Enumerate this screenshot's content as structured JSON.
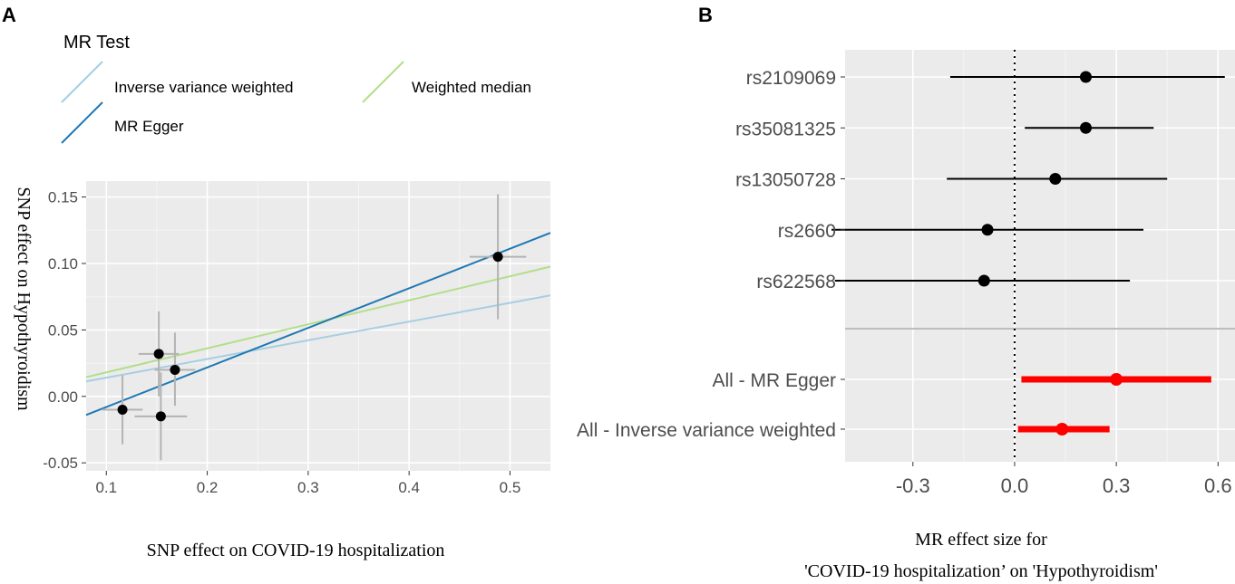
{
  "chart_data": [
    {
      "panel_label": "A",
      "type": "scatter",
      "title": "",
      "xlabel": "SNP effect on COVID-19 hospitalization",
      "ylabel": "SNP effect on Hypothyroidism",
      "xlim": [
        0.08,
        0.54
      ],
      "ylim": [
        -0.056,
        0.162
      ],
      "xticks": [
        0.1,
        0.2,
        0.3,
        0.4,
        0.5
      ],
      "xtick_labels": [
        "0.1",
        "0.2",
        "0.3",
        "0.4",
        "0.5"
      ],
      "yticks": [
        -0.05,
        0.0,
        0.05,
        0.1,
        0.15
      ],
      "ytick_labels": [
        "-0.05",
        "0.00",
        "0.05",
        "0.10",
        "0.15"
      ],
      "grid": true,
      "legend": {
        "title": "MR Test",
        "placement": "top",
        "entries": [
          {
            "key": "ivw",
            "label": "Inverse variance weighted",
            "color": "#a6cee3"
          },
          {
            "key": "wm",
            "label": "Weighted median",
            "color": "#b2df8a"
          },
          {
            "key": "egger",
            "label": "MR Egger",
            "color": "#1f78b4"
          }
        ]
      },
      "points": [
        {
          "x": 0.116,
          "y": -0.01,
          "x_lo": 0.096,
          "x_hi": 0.136,
          "y_lo": -0.036,
          "y_hi": 0.016
        },
        {
          "x": 0.152,
          "y": 0.032,
          "x_lo": 0.132,
          "x_hi": 0.172,
          "y_lo": 0.0,
          "y_hi": 0.064
        },
        {
          "x": 0.168,
          "y": 0.02,
          "x_lo": 0.148,
          "x_hi": 0.188,
          "y_lo": -0.007,
          "y_hi": 0.048
        },
        {
          "x": 0.154,
          "y": -0.015,
          "x_lo": 0.128,
          "x_hi": 0.18,
          "y_lo": -0.048,
          "y_hi": 0.018
        },
        {
          "x": 0.488,
          "y": 0.105,
          "x_lo": 0.46,
          "x_hi": 0.516,
          "y_lo": 0.058,
          "y_hi": 0.152
        }
      ],
      "lines": [
        {
          "key": "ivw",
          "intercept": 0.0,
          "slope": 0.1407,
          "color": "#a6cee3"
        },
        {
          "key": "wm",
          "intercept": 0.0,
          "slope": 0.1808,
          "color": "#b2df8a"
        },
        {
          "key": "egger",
          "intercept": -0.0378,
          "slope": 0.2979,
          "color": "#1f78b4"
        }
      ]
    },
    {
      "panel_label": "B",
      "type": "forest",
      "xlabel_line1": "MR effect size for",
      "xlabel_line2": "'COVID-19 hospitalization’ on 'Hypothyroidism'",
      "xlim": [
        -0.5,
        0.65
      ],
      "xticks": [
        -0.3,
        0.0,
        0.3,
        0.6
      ],
      "xtick_labels": [
        "-0.3",
        "0.0",
        "0.3",
        "0.6"
      ],
      "null_line": 0.0,
      "grid": true,
      "snps": [
        {
          "label": "rs2109069",
          "est": 0.21,
          "lo": -0.19,
          "hi": 0.62
        },
        {
          "label": "rs35081325",
          "est": 0.21,
          "lo": 0.03,
          "hi": 0.41
        },
        {
          "label": "rs13050728",
          "est": 0.12,
          "lo": -0.2,
          "hi": 0.45
        },
        {
          "label": "rs2660",
          "est": -0.08,
          "lo": -0.54,
          "hi": 0.38
        },
        {
          "label": "rs622568",
          "est": -0.09,
          "lo": -0.53,
          "hi": 0.34
        }
      ],
      "summary": [
        {
          "label": "All - MR Egger",
          "est": 0.3,
          "lo": 0.02,
          "hi": 0.58
        },
        {
          "label": "All - Inverse variance weighted",
          "est": 0.14,
          "lo": 0.01,
          "hi": 0.28
        }
      ],
      "colors": {
        "snp": "#000000",
        "summary": "#ff0000",
        "separator": "#bdbdbd"
      }
    }
  ]
}
